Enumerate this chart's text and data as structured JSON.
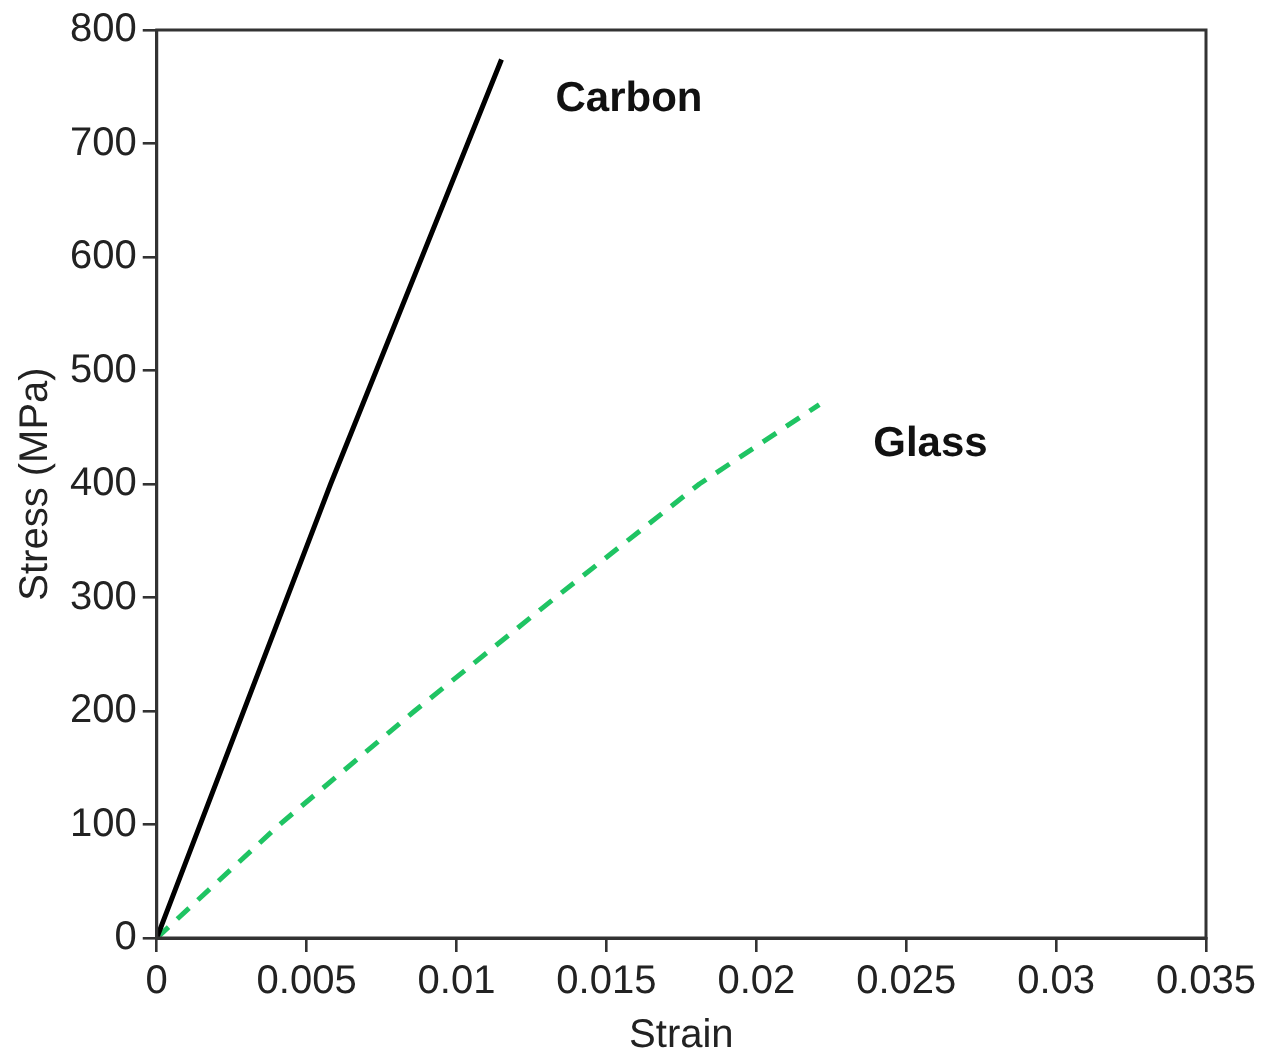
{
  "chart_data": {
    "type": "line",
    "xlabel": "Strain",
    "ylabel": "Stress (MPa)",
    "xlim": [
      0,
      0.035
    ],
    "xticks": [
      0,
      0.005,
      0.01,
      0.015,
      0.02,
      0.025,
      0.03,
      0.035
    ],
    "ylim": [
      0,
      800
    ],
    "yticks": [
      0,
      100,
      200,
      300,
      400,
      500,
      600,
      700,
      800
    ],
    "grid": false,
    "legend": false,
    "marker": "none",
    "series": [
      {
        "name": "Carbon",
        "color": "#000000",
        "line_style": "solid",
        "x": [
          0,
          0.0058,
          0.0115
        ],
        "values": [
          0,
          400,
          774
        ]
      },
      {
        "name": "Glass",
        "color": "#1fc463",
        "line_style": "dashed",
        "x": [
          0,
          0.0041,
          0.0086,
          0.0133,
          0.0181,
          0.0221
        ],
        "values": [
          0,
          100,
          200,
          300,
          400,
          470
        ]
      }
    ]
  }
}
